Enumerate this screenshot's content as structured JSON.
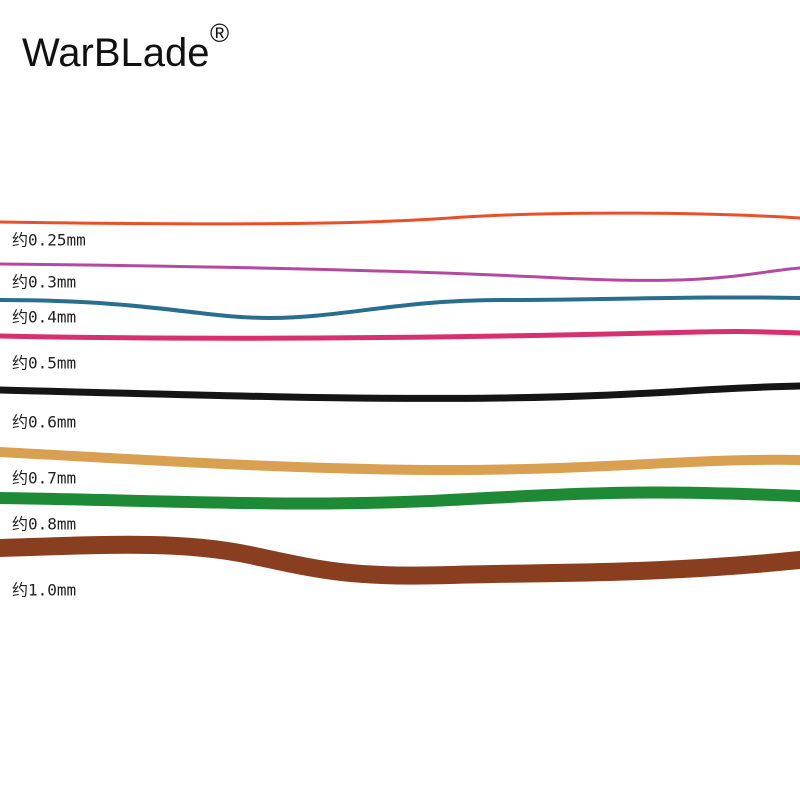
{
  "brand": {
    "name": "WarBLade",
    "mark": "®"
  },
  "labels": [
    "约0.25mm",
    "约0.3mm",
    "约0.4mm",
    "约0.5mm",
    "约0.6mm",
    "约0.7mm",
    "约0.8mm",
    "约1.0mm"
  ]
}
